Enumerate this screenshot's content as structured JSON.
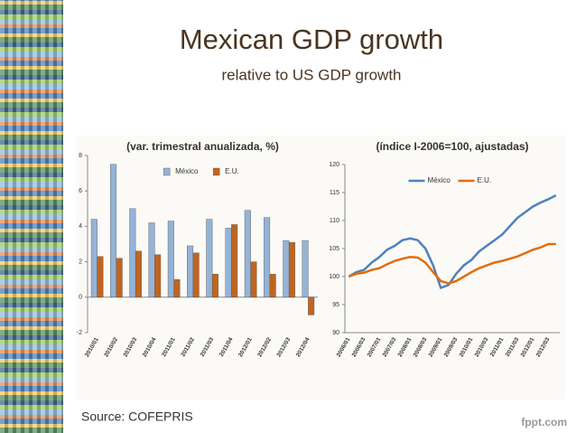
{
  "title": "Mexican GDP growth",
  "subtitle": "relative to US GDP growth",
  "source": "Source: COFEPRIS",
  "watermark": "fppt.com",
  "chart_data": [
    {
      "type": "bar",
      "title": "(var. trimestral anualizada, %)",
      "categories": [
        "2010/01",
        "2010/02",
        "2010/03",
        "2010/04",
        "2011/01",
        "2011/02",
        "2011/03",
        "2011/04",
        "2012/01",
        "2012/02",
        "2012/03",
        "2012/04"
      ],
      "series": [
        {
          "name": "México",
          "color": "#95b3d7",
          "values": [
            4.4,
            7.5,
            5.0,
            4.2,
            4.3,
            2.9,
            4.4,
            3.9,
            4.9,
            4.5,
            3.2,
            3.2
          ]
        },
        {
          "name": "E.U.",
          "color": "#c0651f",
          "values": [
            2.3,
            2.2,
            2.6,
            2.4,
            1.0,
            2.5,
            1.3,
            4.1,
            2.0,
            1.3,
            3.1,
            -1.0
          ]
        }
      ],
      "ylim": [
        -2,
        8
      ],
      "yticks": [
        -2,
        0,
        2,
        4,
        6,
        8
      ]
    },
    {
      "type": "line",
      "title": "(índice I-2006=100, ajustadas)",
      "categories": [
        "2006/01",
        null,
        "2006/03",
        null,
        "2007/01",
        null,
        "2007/03",
        null,
        "2008/01",
        null,
        "2008/03",
        null,
        "2009/01",
        null,
        "2009/03",
        null,
        "2010/01",
        null,
        "2010/03",
        null,
        "2011/01",
        null,
        "2011/03",
        null,
        "2012/01",
        null,
        "2012/03",
        null
      ],
      "series": [
        {
          "name": "México",
          "color": "#4f81bd",
          "values": [
            100,
            100.8,
            101.2,
            102.5,
            103.5,
            104.8,
            105.5,
            106.5,
            106.8,
            106.5,
            105,
            102,
            98,
            98.5,
            100.5,
            102,
            103,
            104.5,
            105.5,
            106.5,
            107.5,
            109,
            110.5,
            111.5,
            112.5,
            113.2,
            113.8,
            114.5
          ]
        },
        {
          "name": "E.U.",
          "color": "#e36c09",
          "values": [
            100,
            100.5,
            100.7,
            101.2,
            101.5,
            102.2,
            102.8,
            103.2,
            103.5,
            103.4,
            102.5,
            100.8,
            99.2,
            98.8,
            99.2,
            100,
            100.8,
            101.5,
            102,
            102.5,
            102.8,
            103.2,
            103.6,
            104.2,
            104.8,
            105.2,
            105.8,
            105.8
          ]
        }
      ],
      "ylim": [
        90,
        120
      ],
      "yticks": [
        90,
        95,
        100,
        105,
        110,
        115,
        120
      ]
    }
  ]
}
